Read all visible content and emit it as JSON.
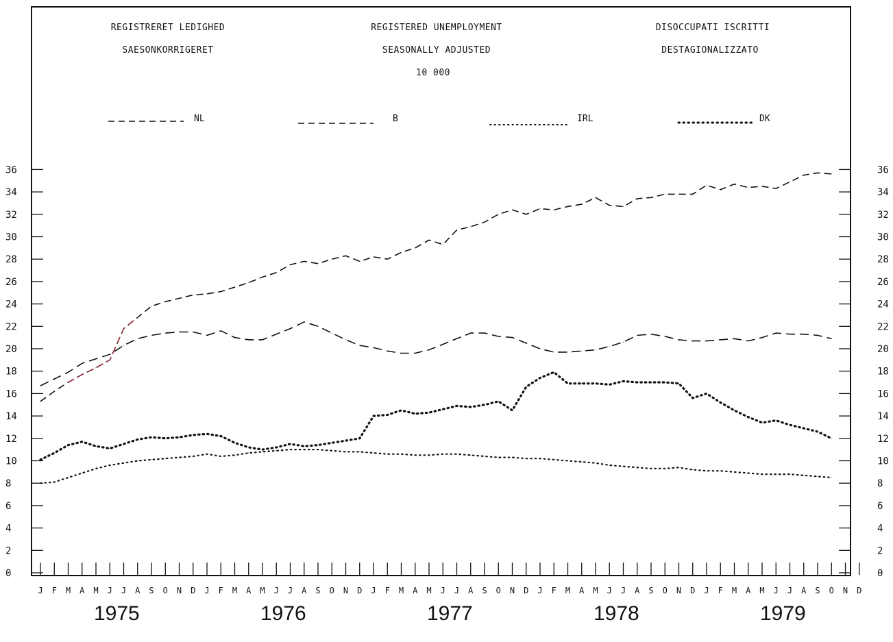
{
  "header": {
    "danish_title": "REGISTRERET LEDIGHED",
    "danish_subtitle": "SAESONKORRIGERET",
    "english_title": "REGISTERED UNEMPLOYMENT",
    "english_subtitle": "SEASONALLY ADJUSTED",
    "unit": "10 000",
    "italian_title": "DISOCCUPATI ISCRITTI",
    "italian_subtitle": "DESTAGIONALIZZATO"
  },
  "colors": {
    "ink": "#111111",
    "b_highlight": "#b03040"
  },
  "chart_data": {
    "type": "line",
    "title": "REGISTERED UNEMPLOYMENT",
    "subtitle": "SEASONALLY ADJUSTED",
    "ylabel": "10 000",
    "ylim": [
      0,
      37
    ],
    "yticks": [
      0,
      2,
      4,
      6,
      8,
      10,
      12,
      14,
      16,
      18,
      20,
      22,
      24,
      26,
      28,
      30,
      32,
      34,
      36
    ],
    "ytick_labels": [
      "0",
      "2",
      "4",
      "6",
      "8",
      "10",
      "12",
      "14",
      "16",
      "18",
      "20",
      "22",
      "24",
      "26",
      "28",
      "30",
      "32",
      "34",
      "36"
    ],
    "months": [
      "J",
      "F",
      "M",
      "A",
      "M",
      "J",
      "J",
      "A",
      "S",
      "O",
      "N",
      "D"
    ],
    "years": [
      "1975",
      "1976",
      "1977",
      "1978",
      "1979"
    ],
    "grid": false,
    "legend_position": "top",
    "series": [
      {
        "name": "NL",
        "style": "long-dash",
        "values": [
          16.7,
          17.3,
          17.9,
          18.7,
          19.1,
          19.5,
          20.3,
          20.9,
          21.2,
          21.4,
          21.5,
          21.5,
          21.2,
          21.6,
          21.0,
          20.8,
          20.8,
          21.3,
          21.8,
          22.4,
          22.0,
          21.4,
          20.8,
          20.3,
          20.1,
          19.8,
          19.6,
          19.6,
          19.9,
          20.4,
          20.9,
          21.4,
          21.4,
          21.1,
          21.0,
          20.5,
          20.0,
          19.7,
          19.7,
          19.8,
          19.9,
          20.2,
          20.6,
          21.2,
          21.3,
          21.1,
          20.8,
          20.7,
          20.7,
          20.8,
          20.9,
          20.7,
          21.0,
          21.4,
          21.3,
          21.3,
          21.2,
          20.9
        ]
      },
      {
        "name": "B",
        "style": "medium-dash",
        "values": [
          15.3,
          16.2,
          17.0,
          17.7,
          18.3,
          19.0,
          21.8,
          22.8,
          23.8,
          24.2,
          24.5,
          24.8,
          24.9,
          25.1,
          25.5,
          25.9,
          26.4,
          26.8,
          27.5,
          27.8,
          27.6,
          28.0,
          28.3,
          27.8,
          28.2,
          28.0,
          28.6,
          29.0,
          29.7,
          29.3,
          30.6,
          30.9,
          31.3,
          32.0,
          32.4,
          32.0,
          32.5,
          32.4,
          32.7,
          32.9,
          33.5,
          32.8,
          32.7,
          33.4,
          33.5,
          33.8,
          33.8,
          33.8,
          34.6,
          34.2,
          34.7,
          34.4,
          34.5,
          34.3,
          34.9,
          35.5,
          35.7,
          35.6
        ]
      },
      {
        "name": "IRL",
        "style": "fine-dotted",
        "values": [
          8.0,
          8.1,
          8.5,
          8.9,
          9.3,
          9.6,
          9.8,
          10.0,
          10.1,
          10.2,
          10.3,
          10.4,
          10.6,
          10.4,
          10.5,
          10.7,
          10.8,
          10.9,
          11.0,
          11.0,
          11.0,
          10.9,
          10.8,
          10.8,
          10.7,
          10.6,
          10.6,
          10.5,
          10.5,
          10.6,
          10.6,
          10.5,
          10.4,
          10.3,
          10.3,
          10.2,
          10.2,
          10.1,
          10.0,
          9.9,
          9.8,
          9.6,
          9.5,
          9.4,
          9.3,
          9.3,
          9.4,
          9.2,
          9.1,
          9.1,
          9.0,
          8.9,
          8.8,
          8.8,
          8.8,
          8.7,
          8.6,
          8.5
        ]
      },
      {
        "name": "DK",
        "style": "heavy-dotted",
        "values": [
          10.1,
          10.7,
          11.4,
          11.7,
          11.3,
          11.1,
          11.5,
          11.9,
          12.1,
          12.0,
          12.1,
          12.3,
          12.4,
          12.2,
          11.6,
          11.2,
          11.0,
          11.2,
          11.5,
          11.3,
          11.4,
          11.6,
          11.8,
          12.0,
          14.0,
          14.1,
          14.5,
          14.2,
          14.3,
          14.6,
          14.9,
          14.8,
          15.0,
          15.3,
          14.5,
          16.6,
          17.4,
          17.9,
          16.9,
          16.9,
          16.9,
          16.8,
          17.1,
          17.0,
          17.0,
          17.0,
          16.9,
          15.6,
          16.0,
          15.2,
          14.5,
          13.9,
          13.4,
          13.6,
          13.2,
          12.9,
          12.6,
          12.0
        ]
      }
    ]
  }
}
